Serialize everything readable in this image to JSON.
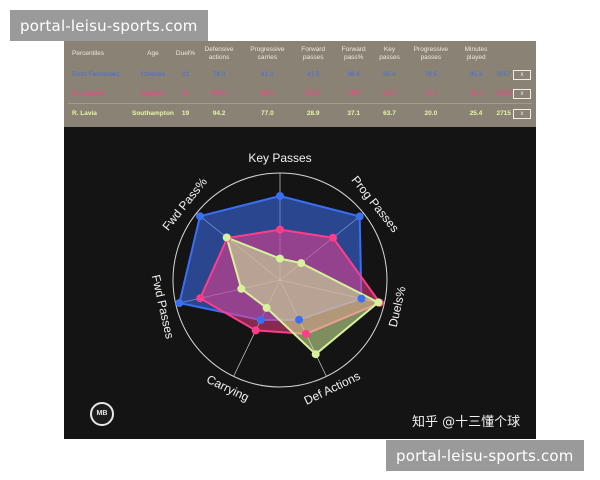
{
  "watermark": {
    "top": "portal-leisu-sports.com",
    "bottom": "portal-leisu-sports.com"
  },
  "table": {
    "headers": [
      "Percentiles",
      "Age",
      "Duel%",
      "Defensive actions",
      "Progressive carries",
      "Forward passes",
      "Forward pass%",
      "Key passes",
      "Progressive passes",
      "Minutes played",
      ""
    ],
    "close_label": "x",
    "rows": [
      {
        "name": "Enzo Fernández",
        "team": "Chelsea",
        "age": "22",
        "values": [
          "78.0",
          "41.2",
          "41.5",
          "96.4",
          "95.6",
          "78.5",
          "95.3"
        ],
        "minutes": "3557"
      },
      {
        "name": "M. Caicedo",
        "team": "Brighton",
        "age": "21",
        "values": [
          "95.8",
          "55.9",
          "52.3",
          "76.5",
          "63.0",
          "47.1",
          "63.4"
        ],
        "minutes": "4299"
      },
      {
        "name": "R. Lavia",
        "team": "Southampton",
        "age": "19",
        "values": [
          "94.2",
          "77.0",
          "28.9",
          "37.1",
          "63.7",
          "20.0",
          "25.4"
        ],
        "minutes": "2715"
      }
    ]
  },
  "chart_data": {
    "type": "radar",
    "axes": [
      "Key Passes",
      "Prog Passes",
      "Duels%",
      "Def Actions",
      "Carrying",
      "Fwd Passes",
      "Fwd Pass%"
    ],
    "range": [
      0,
      100
    ],
    "grid": true,
    "series": [
      {
        "name": "Enzo Fernández",
        "color": "#3a6ff2",
        "values": [
          78.5,
          95.3,
          78.0,
          41.2,
          41.5,
          96.4,
          95.6
        ]
      },
      {
        "name": "M. Caicedo",
        "color": "#ff3d8b",
        "values": [
          47.1,
          63.4,
          95.8,
          55.9,
          52.3,
          76.5,
          63.0
        ]
      },
      {
        "name": "R. Lavia",
        "color": "#d6f29a",
        "values": [
          20.0,
          25.4,
          94.2,
          77.0,
          28.9,
          37.1,
          63.7
        ]
      }
    ]
  },
  "logo_text": "MB",
  "credit": "知乎 @十三懂个球"
}
